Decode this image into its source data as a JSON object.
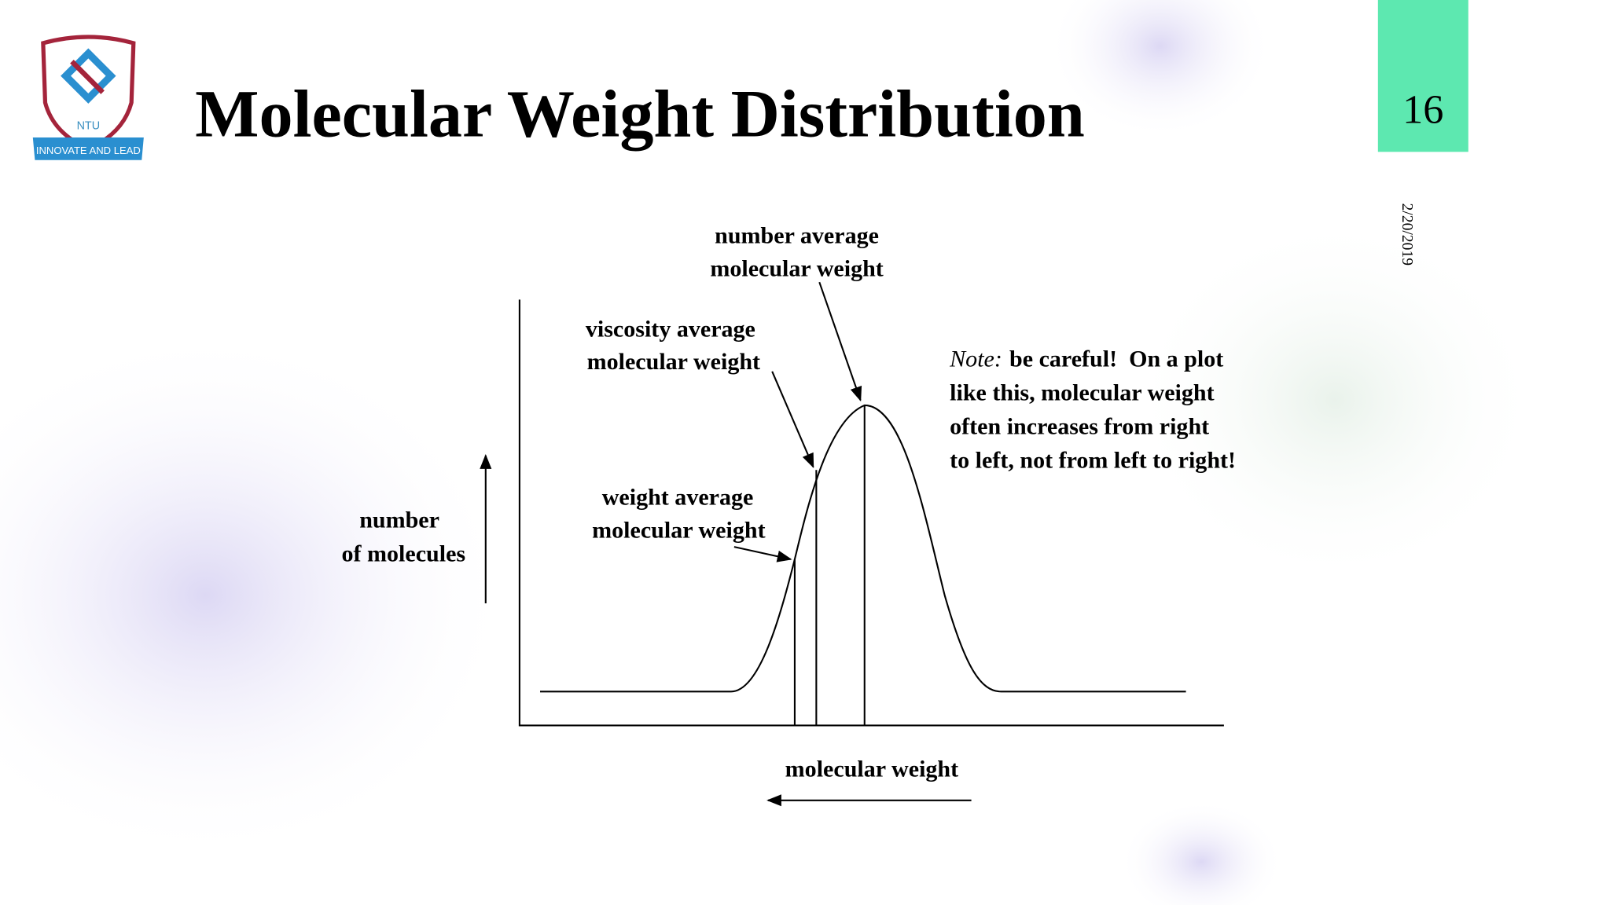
{
  "header": {
    "title": "Molecular Weight Distribution",
    "slide_number": "16",
    "date": "2/20/2019",
    "logo": {
      "name": "NTU",
      "motto": "INNOVATE AND LEAD"
    }
  },
  "diagram": {
    "number_average": [
      "number average",
      "molecular weight"
    ],
    "viscosity_average": [
      "viscosity average",
      "molecular weight"
    ],
    "weight_average": [
      "weight average",
      "molecular weight"
    ],
    "y_axis_label": [
      "number",
      "of molecules"
    ],
    "x_axis_label": "molecular weight",
    "note": {
      "lead": "Note:",
      "lines": [
        "be careful!  On a plot",
        "like this, molecular weight",
        "often increases from right",
        "to left, not from left to right!"
      ]
    }
  }
}
